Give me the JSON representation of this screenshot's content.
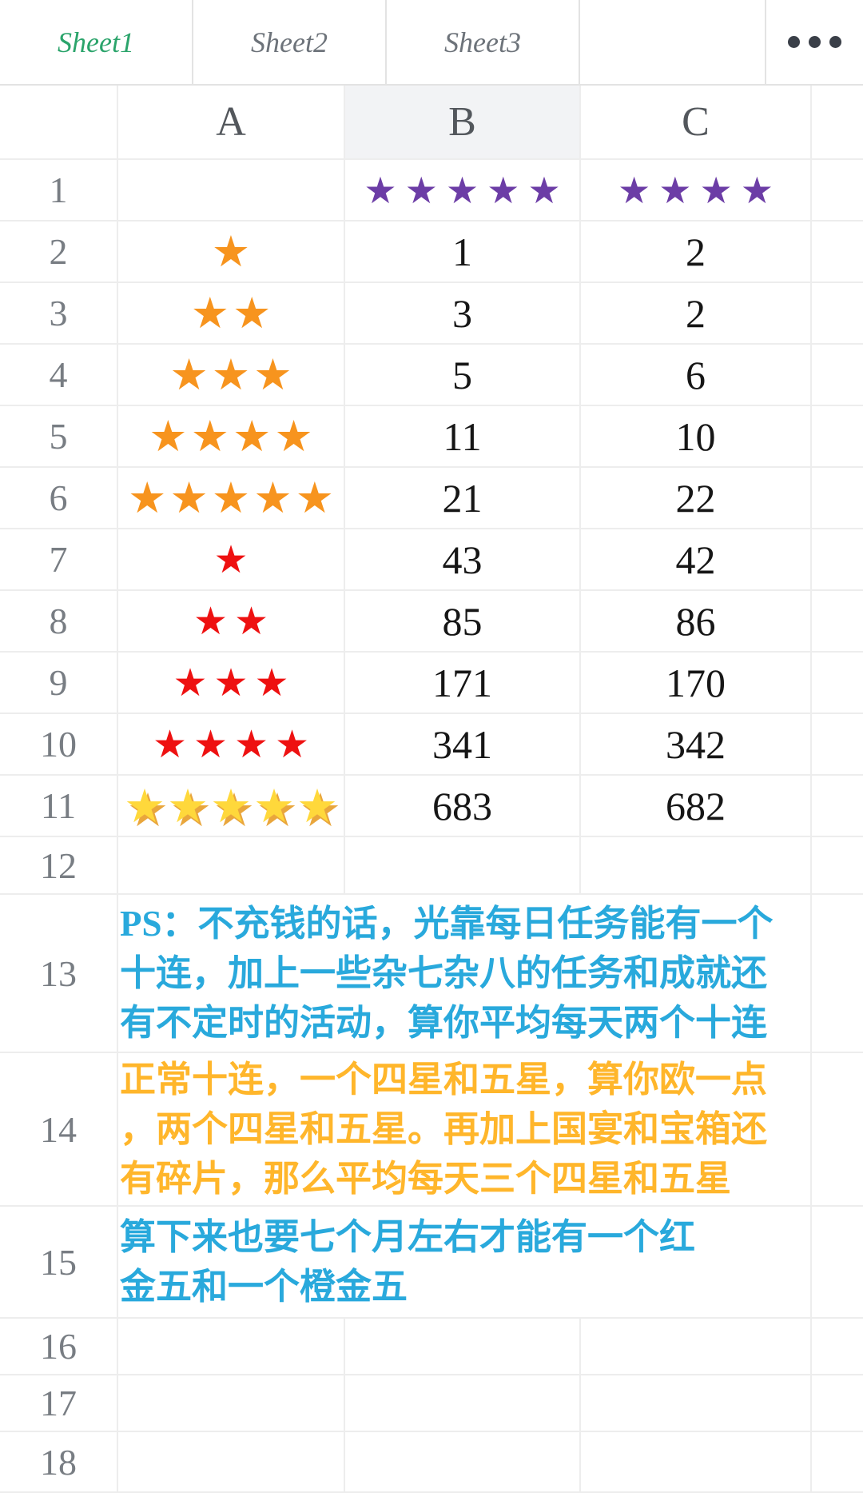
{
  "tab_bar": {
    "tabs": [
      {
        "label": "Sheet1",
        "active": true
      },
      {
        "label": "Sheet2",
        "active": false
      },
      {
        "label": "Sheet3",
        "active": false
      }
    ],
    "menu_icon": "ellipsis-icon"
  },
  "icons": {
    "star_glyph": "★"
  },
  "colors": {
    "active_tab_green": "#2ba46b",
    "selected_header_underline": "#2cb181",
    "star_orange": "#f7941e",
    "star_red": "#ee1111",
    "star_purple": "#6c3da6",
    "star_gold": "#ffd83b",
    "note_blue": "#29a9dc",
    "note_orange": "#ffb62b",
    "gridline": "#ededed"
  },
  "grid": {
    "column_headers": [
      "A",
      "B",
      "C"
    ],
    "selected_column": "B",
    "rows": [
      {
        "num": "1",
        "A": null,
        "B": {
          "stars": 5,
          "color": "purple"
        },
        "C": {
          "stars": 4,
          "color": "purple"
        }
      },
      {
        "num": "2",
        "A": {
          "stars": 1,
          "color": "orange"
        },
        "B": "1",
        "C": "2"
      },
      {
        "num": "3",
        "A": {
          "stars": 2,
          "color": "orange"
        },
        "B": "3",
        "C": "2"
      },
      {
        "num": "4",
        "A": {
          "stars": 3,
          "color": "orange"
        },
        "B": "5",
        "C": "6"
      },
      {
        "num": "5",
        "A": {
          "stars": 4,
          "color": "orange"
        },
        "B": "11",
        "C": "10"
      },
      {
        "num": "6",
        "A": {
          "stars": 5,
          "color": "orange"
        },
        "B": "21",
        "C": "22"
      },
      {
        "num": "7",
        "A": {
          "stars": 1,
          "color": "red"
        },
        "B": "43",
        "C": "42"
      },
      {
        "num": "8",
        "A": {
          "stars": 2,
          "color": "red"
        },
        "B": "85",
        "C": "86"
      },
      {
        "num": "9",
        "A": {
          "stars": 3,
          "color": "red"
        },
        "B": "171",
        "C": "170"
      },
      {
        "num": "10",
        "A": {
          "stars": 4,
          "color": "red"
        },
        "B": "341",
        "C": "342"
      },
      {
        "num": "11",
        "A": {
          "stars": 5,
          "color": "gold"
        },
        "B": "683",
        "C": "682"
      },
      {
        "num": "12"
      },
      {
        "num": "13",
        "note": {
          "color": "blue",
          "lines": [
            "PS：不充钱的话，光靠每日任务能有一个",
            "十连，加上一些杂七杂八的任务和成就还",
            "有不定时的活动，算你平均每天两个十连"
          ]
        }
      },
      {
        "num": "14",
        "note": {
          "color": "orange",
          "lines": [
            "正常十连，一个四星和五星，算你欧一点",
            "，两个四星和五星。再加上国宴和宝箱还",
            "有碎片，那么平均每天三个四星和五星"
          ]
        }
      },
      {
        "num": "15",
        "note": {
          "color": "blue",
          "lines": [
            "算下来也要七个月左右才能有一个红",
            "金五和一个橙金五"
          ]
        }
      },
      {
        "num": "16"
      },
      {
        "num": "17"
      },
      {
        "num": "18"
      }
    ]
  }
}
